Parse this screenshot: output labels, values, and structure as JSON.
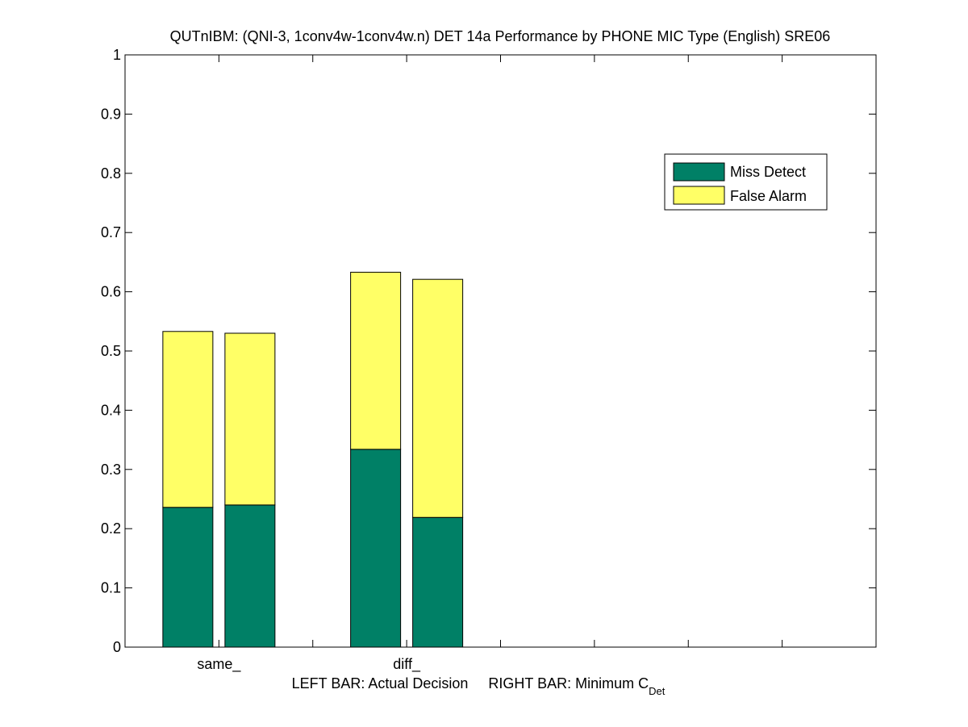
{
  "chart_data": {
    "type": "bar",
    "stacked": true,
    "title": "QUTnIBM: (QNI-3, 1conv4w-1conv4w.n) DET 14a Performance by PHONE MIC Type (English) SRE06",
    "xlabel": "LEFT BAR: Actual Decision     RIGHT BAR: Minimum C",
    "xlabel_subscript": "Det",
    "ylim": [
      0,
      1
    ],
    "yticks": [
      "0",
      "0.1",
      "0.2",
      "0.3",
      "0.4",
      "0.5",
      "0.6",
      "0.7",
      "0.8",
      "0.9",
      "1"
    ],
    "categories": [
      "same_",
      "diff_"
    ],
    "x_tick_slots": 4,
    "bar_roles": [
      "Actual Decision",
      "Minimum C_Det"
    ],
    "series": [
      {
        "name": "Miss Detect",
        "color": "#008066",
        "values": [
          [
            0.236,
            0.24
          ],
          [
            0.334,
            0.219
          ]
        ]
      },
      {
        "name": "False Alarm",
        "color": "#ffff66",
        "values": [
          [
            0.297,
            0.29
          ],
          [
            0.299,
            0.402
          ]
        ]
      }
    ],
    "legend": {
      "position": "top-right"
    },
    "grid": false
  }
}
